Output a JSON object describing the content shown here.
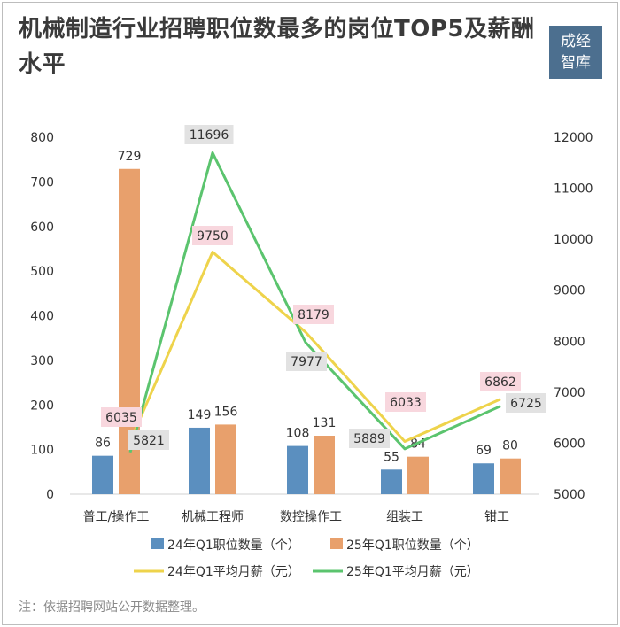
{
  "title": "机械制造行业招聘职位数最多的岗位TOP5及薪酬水平",
  "logo": {
    "line1": "成经",
    "line2": "智库"
  },
  "note": "注：依据招聘网站公开数据整理。",
  "colors": {
    "bar24": "#5b8fbf",
    "bar25": "#e8a06c",
    "line24": "#eed34b",
    "line25": "#5bc46e",
    "label24bg": "#f8d7de",
    "label25bg": "#e2e2e2"
  },
  "chart_data": {
    "type": "bar+line",
    "categories": [
      "普工/操作工",
      "机械工程师",
      "数控操作工",
      "组装工",
      "钳工"
    ],
    "y_left": {
      "min": 0,
      "max": 800,
      "ticks": [
        0,
        100,
        200,
        300,
        400,
        500,
        600,
        700,
        800
      ]
    },
    "y_right": {
      "min": 5000,
      "max": 12000,
      "ticks": [
        5000,
        6000,
        7000,
        8000,
        9000,
        10000,
        11000,
        12000
      ]
    },
    "series": [
      {
        "name": "24年Q1职位数量（个）",
        "kind": "bar",
        "axis": "left",
        "values": [
          86,
          149,
          108,
          55,
          69
        ]
      },
      {
        "name": "25年Q1职位数量（个）",
        "kind": "bar",
        "axis": "left",
        "values": [
          729,
          156,
          131,
          84,
          80
        ]
      },
      {
        "name": "24年Q1平均月薪（元）",
        "kind": "line",
        "axis": "right",
        "values": [
          6035,
          9750,
          8179,
          6033,
          6862
        ]
      },
      {
        "name": "25年Q1平均月薪（元）",
        "kind": "line",
        "axis": "right",
        "values": [
          5821,
          11696,
          7977,
          5889,
          6725
        ]
      }
    ],
    "grid": false
  }
}
